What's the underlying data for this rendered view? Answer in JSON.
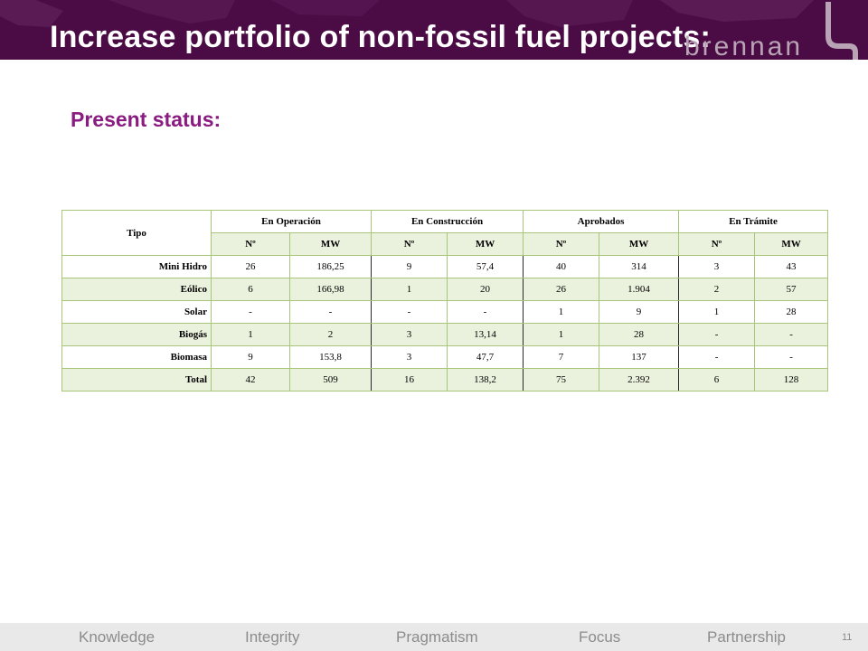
{
  "header": {
    "title": "Increase portfolio of non-fossil fuel projects:",
    "logo_text": "brennan",
    "background_color": "#4b0b45"
  },
  "section": {
    "subtitle": "Present status:",
    "subtitle_color": "#8a1b80"
  },
  "table": {
    "group_headers": [
      "Tipo",
      "En Operación",
      "En Construcción",
      "Aprobados",
      "En Trámite"
    ],
    "sub_headers": [
      "Nº",
      "MW",
      "Nº",
      "MW",
      "Nº",
      "MW",
      "Nº",
      "MW"
    ],
    "rows": [
      {
        "label": "Mini Hidro",
        "values": [
          "26",
          "186,25",
          "9",
          "57,4",
          "40",
          "314",
          "3",
          "43"
        ]
      },
      {
        "label": "Eólico",
        "values": [
          "6",
          "166,98",
          "1",
          "20",
          "26",
          "1.904",
          "2",
          "57"
        ]
      },
      {
        "label": "Solar",
        "values": [
          "-",
          "-",
          "-",
          "-",
          "1",
          "9",
          "1",
          "28"
        ]
      },
      {
        "label": "Biogás",
        "values": [
          "1",
          "2",
          "3",
          "13,14",
          "1",
          "28",
          "-",
          "-"
        ]
      },
      {
        "label": "Biomasa",
        "values": [
          "9",
          "153,8",
          "3",
          "47,7",
          "7",
          "137",
          "-",
          "-"
        ]
      },
      {
        "label": "Total",
        "values": [
          "42",
          "509",
          "16",
          "138,2",
          "75",
          "2.392",
          "6",
          "128"
        ]
      }
    ]
  },
  "footer": {
    "items": [
      "Knowledge",
      "Integrity",
      "Pragmatism",
      "Focus",
      "Partnership"
    ],
    "page_number": "11"
  }
}
